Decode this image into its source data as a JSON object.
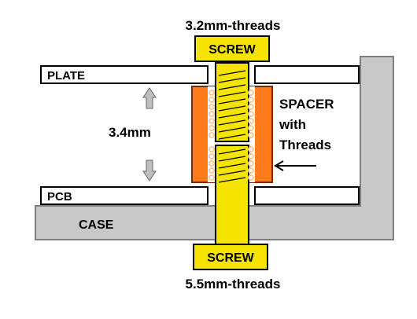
{
  "labels": {
    "top_thread": "3.2mm-threads",
    "bottom_thread": "5.5mm-threads",
    "screw_top": "SCREW",
    "screw_bottom": "SCREW",
    "plate": "PLATE",
    "pcb": "PCB",
    "case": "CASE",
    "gap": "3.4mm",
    "spacer_line1": "SPACER",
    "spacer_line2": "with",
    "spacer_line3": "Threads"
  },
  "colors": {
    "screw": "#f5e400",
    "screw_border": "#000000",
    "spacer": "#ff7a1a",
    "spacer_border": "#7a2a00",
    "thread_coil": "#ffc999",
    "case_fill": "#c8c8c8",
    "case_border": "#7f7f7f",
    "plate_fill": "#ffffff",
    "arrow_fill": "#bfbfbf"
  }
}
